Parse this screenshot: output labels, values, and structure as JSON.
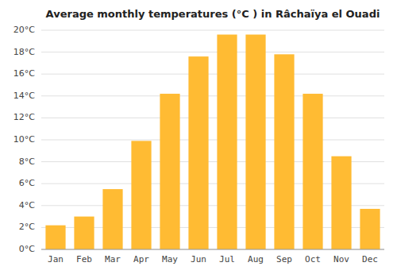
{
  "chart_data": {
    "type": "bar",
    "title": "Average monthly temperatures (°C ) in Râchaïya el Ouadi",
    "categories": [
      "Jan",
      "Feb",
      "Mar",
      "Apr",
      "May",
      "Jun",
      "Jul",
      "Aug",
      "Sep",
      "Oct",
      "Nov",
      "Dec"
    ],
    "values": [
      2.2,
      3.0,
      5.5,
      9.9,
      14.2,
      17.6,
      19.6,
      19.6,
      17.8,
      14.2,
      8.5,
      3.7
    ],
    "color": "#FFBB33",
    "ylim": [
      0,
      20
    ],
    "yticks": [
      {
        "value": 0,
        "label": "0°C"
      },
      {
        "value": 2,
        "label": "2°C"
      },
      {
        "value": 4,
        "label": "4°C"
      },
      {
        "value": 6,
        "label": "6°C"
      },
      {
        "value": 8,
        "label": "8°C"
      },
      {
        "value": 10,
        "label": "10°C"
      },
      {
        "value": 12,
        "label": "12°C"
      },
      {
        "value": 14,
        "label": "14°C"
      },
      {
        "value": 16,
        "label": "16°C"
      },
      {
        "value": 18,
        "label": "18°C"
      },
      {
        "value": 20,
        "label": "20°C"
      }
    ],
    "grid": true
  }
}
